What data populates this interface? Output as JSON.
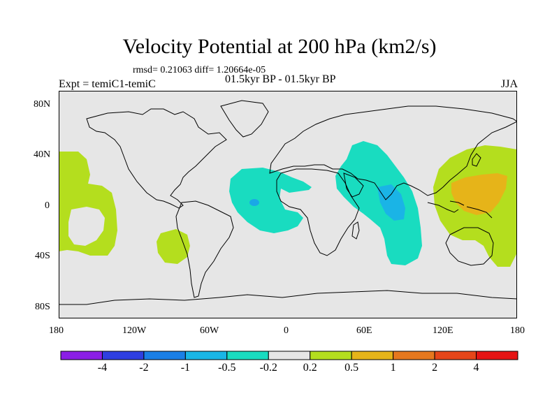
{
  "title": "Velocity Potential at 200 hPa (km2/s)",
  "stats": "rmsd= 0.21063 diff= 1.20664e-05",
  "experiment": "Expt = temiC1-temiC",
  "period": "01.5kyr BP - 01.5kyr BP",
  "season": "JJA",
  "lat_ticks": [
    "80N",
    "40N",
    "0",
    "40S",
    "80S"
  ],
  "lon_ticks": [
    "180",
    "120W",
    "60W",
    "0",
    "60E",
    "120E",
    "180"
  ],
  "colorbar": {
    "labels": [
      "-4",
      "-2",
      "-1",
      "-0.5",
      "-0.2",
      "0.2",
      "0.5",
      "1",
      "2",
      "4"
    ],
    "colors": [
      "#8b1ee6",
      "#2f3fe0",
      "#1a7fe6",
      "#19b6e6",
      "#19dcc0",
      "#e6e6e6",
      "#b4de1e",
      "#e6b419",
      "#e6781e",
      "#e64619",
      "#e61414"
    ]
  }
}
